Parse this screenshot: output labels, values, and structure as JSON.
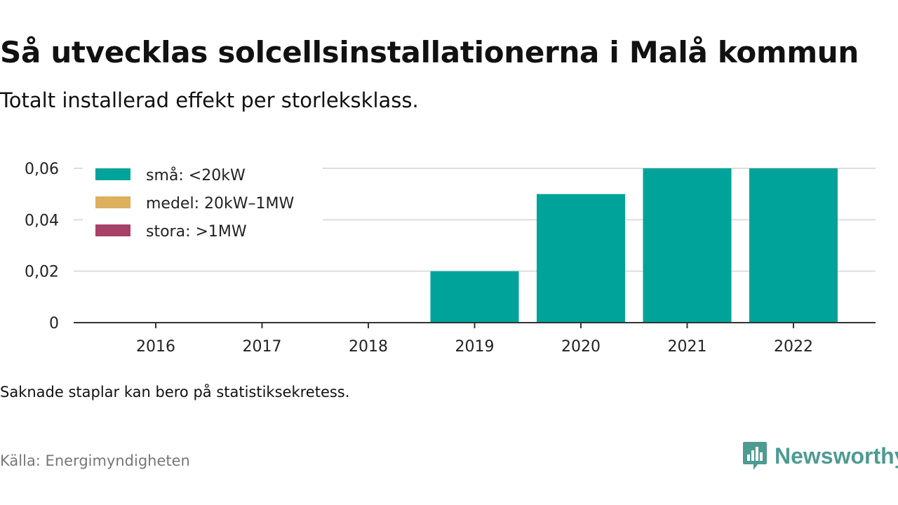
{
  "header": {
    "title": "Så utvecklas solcellsinstallationerna i Malå kommun",
    "subtitle": "Totalt installerad effekt per storleksklass."
  },
  "footer": {
    "note": "Saknade staplar kan bero på statistiksekretess.",
    "source": "Källa: Energimyndigheten",
    "brand": "Newsworthy",
    "brand_icon": "bar-chart-speech-bubble-icon"
  },
  "chart_data": {
    "type": "bar",
    "stacked": true,
    "categories": [
      "2016",
      "2017",
      "2018",
      "2019",
      "2020",
      "2021",
      "2022"
    ],
    "series": [
      {
        "name": "små: <20kW",
        "color": "#00a39a",
        "values": [
          0,
          0,
          0,
          0.02,
          0.05,
          0.06,
          0.06
        ]
      },
      {
        "name": "medel: 20kW–1MW",
        "color": "#ddb05e",
        "values": [
          0,
          0,
          0,
          0,
          0,
          0,
          0
        ]
      },
      {
        "name": "stora: >1MW",
        "color": "#a8416a",
        "values": [
          0,
          0,
          0,
          0,
          0,
          0,
          0
        ]
      }
    ],
    "ylim": [
      0,
      0.06
    ],
    "yticks": [
      0,
      0.02,
      0.04,
      0.06
    ],
    "ytick_labels": [
      "0",
      "0,02",
      "0,04",
      "0,06"
    ],
    "grid": true,
    "legend": "top-left"
  }
}
